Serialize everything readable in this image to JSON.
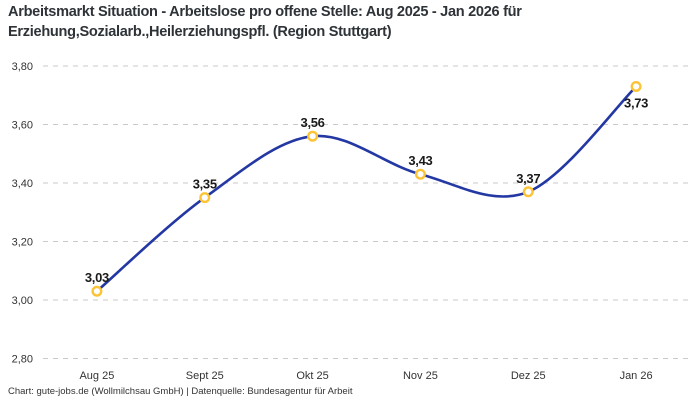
{
  "header": {
    "title_line1": "Arbeitsmarkt Situation - Arbeitslose pro offene Stelle: Aug 2025 - Jan 2026 für",
    "title_line2": "Erziehung,Sozialarb.,Heilerziehungspfl. (Region Stuttgart)"
  },
  "chart_data": {
    "type": "line",
    "title": "Arbeitsmarkt Situation - Arbeitslose pro offene Stelle: Aug 2025 - Jan 2026 für Erziehung,Sozialarb.,Heilerziehungspfl. (Region Stuttgart)",
    "categories": [
      "Aug 25",
      "Sept 25",
      "Okt 25",
      "Nov 25",
      "Dez 25",
      "Jan 26"
    ],
    "values": [
      3.03,
      3.35,
      3.56,
      3.43,
      3.37,
      3.73
    ],
    "point_labels": [
      "3,03",
      "3,35",
      "3,56",
      "3,43",
      "3,37",
      "3,73"
    ],
    "xlabel": "",
    "ylabel": "",
    "ylim": [
      2.8,
      3.8
    ],
    "yticks": [
      3.8,
      3.6,
      3.4,
      3.2,
      3.0,
      2.8
    ],
    "ytick_labels": [
      "3,80",
      "3,60",
      "3,40",
      "3,20",
      "3,00",
      "2,80"
    ],
    "grid": "horizontal-dashed",
    "legend_position": "none",
    "line_style": "smooth-spline",
    "colors": {
      "line": "#2438a4",
      "marker_ring": "#fcc335",
      "marker_fill": "#ffffff",
      "gridline": "#c9c9c9",
      "point_label_text": "#1a1a1a",
      "axis_text": "#333333"
    }
  },
  "footer": {
    "text": "Chart: gute-jobs.de (Wollmilchsau GmbH) | Datenquelle: Bundesagentur für Arbeit"
  }
}
